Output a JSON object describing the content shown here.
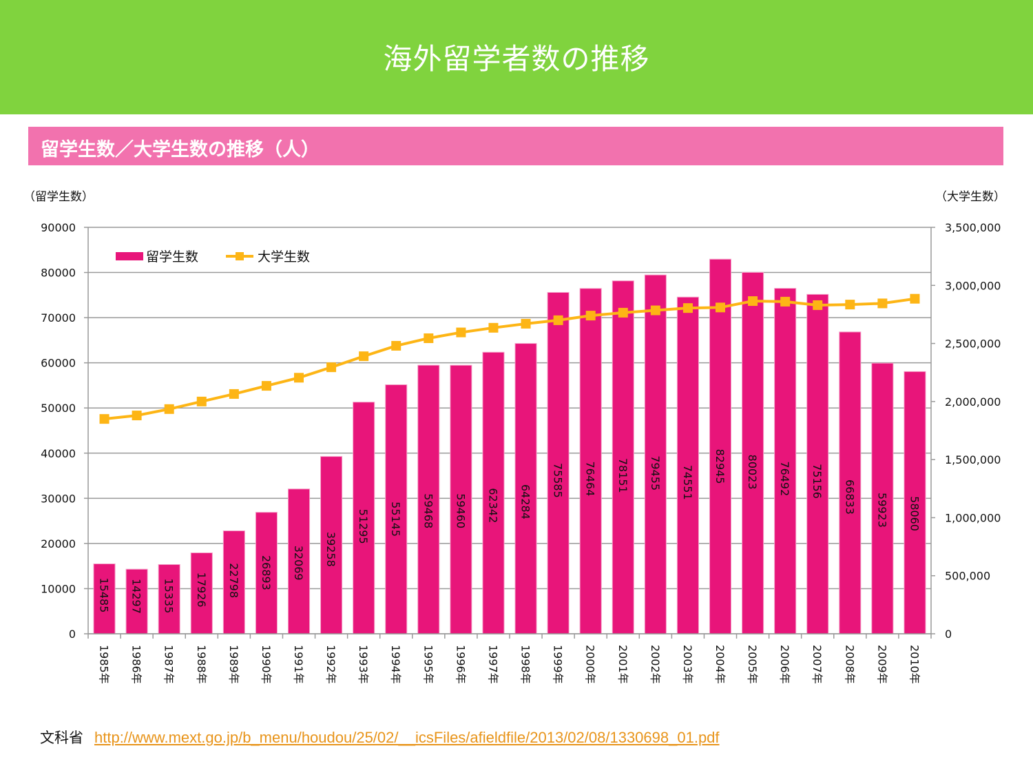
{
  "header": {
    "title": "海外留学者数の推移"
  },
  "subheader": {
    "title": "留学生数／大学生数の推移（人）"
  },
  "colors": {
    "header_bg": "#80d33e",
    "subheader_bg": "#f272ae",
    "bar": "#e8157a",
    "line": "#fdb515",
    "grid": "#999999",
    "link": "#e8941a"
  },
  "footer": {
    "source_label": "文科省",
    "link_text": "http://www.mext.go.jp/b_menu/houdou/25/02/__icsFiles/afieldfile/2013/02/08/1330698_01.pdf"
  },
  "chart_data": {
    "type": "bar+line",
    "title": "留学生数／大学生数の推移（人）",
    "ylabel_left": "（留学生数）",
    "ylabel_right": "（大学生数）",
    "categories": [
      "1985年",
      "1986年",
      "1987年",
      "1988年",
      "1989年",
      "1990年",
      "1991年",
      "1992年",
      "1993年",
      "1994年",
      "1995年",
      "1996年",
      "1997年",
      "1998年",
      "1999年",
      "2000年",
      "2001年",
      "2002年",
      "2003年",
      "2004年",
      "2005年",
      "2006年",
      "2007年",
      "2008年",
      "2009年",
      "2010年"
    ],
    "series": [
      {
        "name": "留学生数",
        "type": "bar",
        "axis": "left",
        "values": [
          15485,
          14297,
          15335,
          17926,
          22798,
          26893,
          32069,
          39258,
          51295,
          55145,
          59468,
          59460,
          62342,
          64284,
          75585,
          76464,
          78151,
          79455,
          74551,
          82945,
          80023,
          76492,
          75156,
          66833,
          59923,
          58060
        ]
      },
      {
        "name": "大学生数",
        "type": "line",
        "axis": "right",
        "marker": "square",
        "values": [
          1850000,
          1880000,
          1935000,
          2000000,
          2065000,
          2135000,
          2205000,
          2295000,
          2390000,
          2480000,
          2545000,
          2595000,
          2635000,
          2670000,
          2700000,
          2740000,
          2765000,
          2785000,
          2805000,
          2810000,
          2865000,
          2860000,
          2830000,
          2835000,
          2845000,
          2885000
        ]
      }
    ],
    "ylim_left": [
      0,
      90000
    ],
    "yticks_left": [
      "0",
      "10000",
      "20000",
      "30000",
      "40000",
      "50000",
      "60000",
      "70000",
      "80000",
      "90000"
    ],
    "ylim_right": [
      0,
      3500000
    ],
    "yticks_right": [
      "0",
      "500,000",
      "1,000,000",
      "1,500,000",
      "2,000,000",
      "2,500,000",
      "3,000,000",
      "3,500,000"
    ],
    "grid": true,
    "legend": {
      "placement": "top-left",
      "entries": [
        "留学生数",
        "大学生数"
      ]
    },
    "data_labels": "inside bars, rotated 90°"
  }
}
